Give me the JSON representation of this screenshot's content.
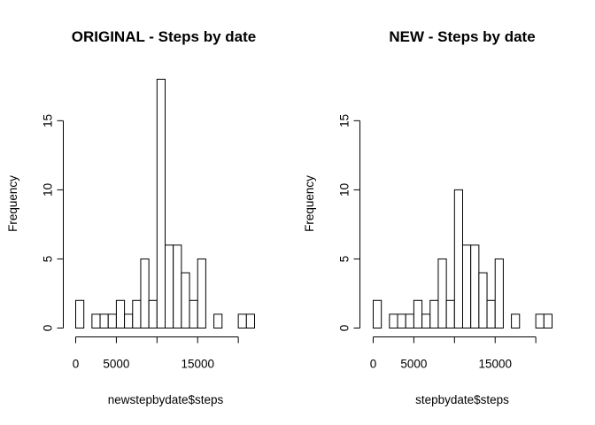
{
  "chart_data": [
    {
      "type": "bar",
      "title": "ORIGINAL - Steps by date",
      "xlabel": "newstepbydate$steps",
      "ylabel": "Frequency",
      "bin_width": 1000,
      "bins_start": 0,
      "values": [
        2,
        0,
        1,
        1,
        1,
        2,
        1,
        2,
        5,
        2,
        18,
        6,
        6,
        4,
        2,
        5,
        0,
        1,
        0,
        0,
        1,
        1
      ],
      "xlim": [
        0,
        22000
      ],
      "ylim": [
        0,
        18
      ],
      "xticks": [
        0,
        5000,
        10000,
        15000,
        20000
      ],
      "xtick_labels": [
        "0",
        "5000",
        "",
        "15000",
        ""
      ],
      "yticks": [
        0,
        5,
        10,
        15
      ],
      "ytick_labels": [
        "0",
        "5",
        "10",
        "15"
      ],
      "grid": false
    },
    {
      "type": "bar",
      "title": "NEW - Steps by date",
      "xlabel": "stepbydate$steps",
      "ylabel": "Frequency",
      "bin_width": 1000,
      "bins_start": 0,
      "values": [
        2,
        0,
        1,
        1,
        1,
        2,
        1,
        2,
        5,
        2,
        10,
        6,
        6,
        4,
        2,
        5,
        0,
        1,
        0,
        0,
        1,
        1
      ],
      "xlim": [
        0,
        22000
      ],
      "ylim": [
        0,
        18
      ],
      "xticks": [
        0,
        5000,
        10000,
        15000,
        20000
      ],
      "xtick_labels": [
        "0",
        "5000",
        "",
        "15000",
        ""
      ],
      "yticks": [
        0,
        5,
        10,
        15
      ],
      "ytick_labels": [
        "0",
        "5",
        "10",
        "15"
      ],
      "grid": false
    }
  ],
  "colors": {
    "bar_fill": "#ffffff",
    "bar_stroke": "#000000",
    "axis": "#000000",
    "background": "#ffffff"
  }
}
